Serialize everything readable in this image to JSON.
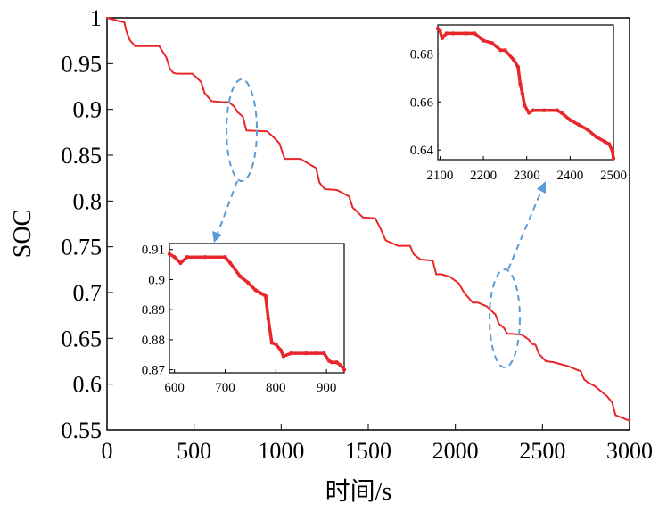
{
  "chart_data": {
    "type": "line",
    "xlabel": "时间/s",
    "ylabel": "SOC",
    "series_color": "#e8272b",
    "annotation_color": "#5b9bd5",
    "main": {
      "xlim": [
        0,
        3000
      ],
      "ylim": [
        0.55,
        1.0
      ],
      "xticks": [
        0,
        500,
        1000,
        1500,
        2000,
        2500,
        3000
      ],
      "xtick_labels": [
        "0",
        "500",
        "1000",
        "1500",
        "2000",
        "2500",
        "3000"
      ],
      "yticks": [
        0.55,
        0.6,
        0.65,
        0.7,
        0.75,
        0.8,
        0.85,
        0.9,
        0.95,
        1.0
      ],
      "ytick_labels": [
        "0.55",
        "0.6",
        "0.65",
        "0.7",
        "0.75",
        "0.8",
        "0.85",
        "0.9",
        "0.95",
        "1"
      ],
      "series": [
        {
          "name": "SOC",
          "x": [
            0,
            100,
            110,
            130,
            160,
            300,
            340,
            360,
            380,
            400,
            490,
            540,
            560,
            600,
            660,
            700,
            730,
            750,
            780,
            800,
            920,
            960,
            990,
            1020,
            1110,
            1200,
            1220,
            1250,
            1320,
            1390,
            1410,
            1470,
            1540,
            1570,
            1600,
            1670,
            1740,
            1760,
            1800,
            1870,
            1890,
            1920,
            1970,
            2020,
            2050,
            2100,
            2130,
            2180,
            2230,
            2250,
            2280,
            2295,
            2305,
            2320,
            2380,
            2420,
            2440,
            2460,
            2480,
            2500,
            2520,
            2560,
            2600,
            2640,
            2680,
            2720,
            2740,
            2760,
            2800,
            2850,
            2870,
            2900,
            2920,
            3000
          ],
          "y": [
            1.0,
            0.995,
            0.986,
            0.976,
            0.969,
            0.969,
            0.957,
            0.945,
            0.94,
            0.939,
            0.939,
            0.93,
            0.918,
            0.909,
            0.908,
            0.908,
            0.903,
            0.897,
            0.892,
            0.877,
            0.876,
            0.869,
            0.863,
            0.846,
            0.846,
            0.836,
            0.82,
            0.813,
            0.812,
            0.805,
            0.793,
            0.782,
            0.781,
            0.77,
            0.757,
            0.751,
            0.751,
            0.742,
            0.736,
            0.735,
            0.72,
            0.72,
            0.717,
            0.71,
            0.7,
            0.689,
            0.689,
            0.685,
            0.676,
            0.666,
            0.661,
            0.656,
            0.655,
            0.655,
            0.654,
            0.649,
            0.644,
            0.643,
            0.633,
            0.629,
            0.625,
            0.624,
            0.622,
            0.62,
            0.617,
            0.614,
            0.605,
            0.602,
            0.598,
            0.59,
            0.587,
            0.58,
            0.566,
            0.56
          ]
        }
      ]
    },
    "inset_left": {
      "xlim": [
        590,
        935
      ],
      "ylim": [
        0.869,
        0.912
      ],
      "xticks": [
        600,
        700,
        800,
        900
      ],
      "xtick_labels": [
        "600",
        "700",
        "800",
        "900"
      ],
      "yticks": [
        0.87,
        0.88,
        0.89,
        0.9,
        0.91
      ],
      "ytick_labels": [
        "0.87",
        "0.88",
        "0.89",
        "0.9",
        "0.91"
      ],
      "series": [
        {
          "name": "SOC",
          "x": [
            590,
            600,
            612,
            625,
            660,
            700,
            710,
            730,
            745,
            760,
            770,
            780,
            785,
            792,
            800,
            810,
            815,
            830,
            860,
            880,
            895,
            905,
            910,
            920,
            928,
            935
          ],
          "y": [
            0.9085,
            0.9075,
            0.9055,
            0.9075,
            0.9075,
            0.9075,
            0.9055,
            0.901,
            0.899,
            0.8965,
            0.8955,
            0.8945,
            0.887,
            0.879,
            0.8785,
            0.8765,
            0.8745,
            0.8755,
            0.8755,
            0.8755,
            0.8755,
            0.873,
            0.8725,
            0.8725,
            0.8715,
            0.87
          ]
        }
      ]
    },
    "inset_right": {
      "xlim": [
        2095,
        2500
      ],
      "ylim": [
        0.636,
        0.692
      ],
      "xticks": [
        2100,
        2200,
        2300,
        2400,
        2500
      ],
      "xtick_labels": [
        "2100",
        "2200",
        "2300",
        "2400",
        "2500"
      ],
      "yticks": [
        0.64,
        0.66,
        0.68
      ],
      "ytick_labels": [
        "0.64",
        "0.66",
        "0.68"
      ],
      "series": [
        {
          "name": "SOC",
          "x": [
            2095,
            2100,
            2105,
            2115,
            2130,
            2160,
            2180,
            2200,
            2220,
            2240,
            2250,
            2270,
            2280,
            2285,
            2290,
            2295,
            2305,
            2315,
            2340,
            2370,
            2380,
            2400,
            2420,
            2440,
            2460,
            2480,
            2490,
            2498,
            2500
          ],
          "y": [
            0.6905,
            0.6895,
            0.6865,
            0.6885,
            0.6885,
            0.6885,
            0.6885,
            0.6855,
            0.6845,
            0.6815,
            0.6815,
            0.6775,
            0.6745,
            0.6675,
            0.6635,
            0.6585,
            0.6555,
            0.6565,
            0.6565,
            0.6565,
            0.6555,
            0.6525,
            0.6505,
            0.6485,
            0.6455,
            0.6435,
            0.6425,
            0.6395,
            0.6365
          ]
        }
      ]
    }
  }
}
